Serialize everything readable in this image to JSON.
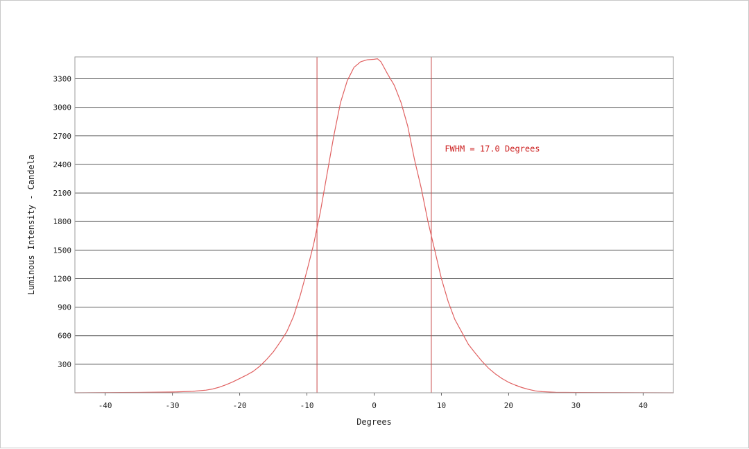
{
  "chart_data": {
    "type": "line",
    "title": "",
    "xlabel": "Degrees",
    "ylabel": "Luminous Intensity - Candela",
    "xlim": [
      -44.5,
      44.5
    ],
    "ylim": [
      0,
      3530
    ],
    "x_ticks": [
      -40,
      -30,
      -20,
      -10,
      0,
      10,
      20,
      30,
      40
    ],
    "y_ticks": [
      300,
      600,
      900,
      1200,
      1500,
      1800,
      2100,
      2400,
      2700,
      3000,
      3300
    ],
    "grid": true,
    "series_color": "#e06060",
    "marker_color": "#c84848",
    "annotation": {
      "text": "FWHM = 17.0 Degrees",
      "color": "#cc2020",
      "x": 10.5,
      "y": 2535
    },
    "vertical_markers": [
      -8.5,
      8.5
    ],
    "series": [
      {
        "x": [
          -44.5,
          -40,
          -35,
          -30,
          -27,
          -25,
          -24,
          -23,
          -22,
          -21,
          -20,
          -19,
          -18,
          -17,
          -16,
          -15,
          -14,
          -13,
          -12,
          -11,
          -10,
          -9,
          -8,
          -7,
          -6,
          -5,
          -4,
          -3,
          -2,
          -1,
          0,
          0.5,
          1,
          2,
          3,
          4,
          5,
          6,
          7,
          8,
          9,
          10,
          11,
          12,
          13,
          14,
          15,
          16,
          17,
          18,
          19,
          20,
          21,
          22,
          23,
          24,
          25,
          27,
          30,
          35,
          40,
          44.5
        ],
        "y": [
          0,
          2,
          4,
          8,
          15,
          28,
          40,
          60,
          85,
          115,
          150,
          185,
          225,
          280,
          350,
          430,
          530,
          640,
          800,
          1020,
          1280,
          1560,
          1900,
          2300,
          2700,
          3050,
          3280,
          3420,
          3480,
          3500,
          3505,
          3510,
          3480,
          3350,
          3230,
          3050,
          2800,
          2450,
          2150,
          1800,
          1500,
          1200,
          960,
          770,
          640,
          510,
          420,
          335,
          260,
          200,
          150,
          110,
          80,
          55,
          35,
          20,
          12,
          5,
          3,
          2,
          1,
          0
        ]
      }
    ]
  }
}
